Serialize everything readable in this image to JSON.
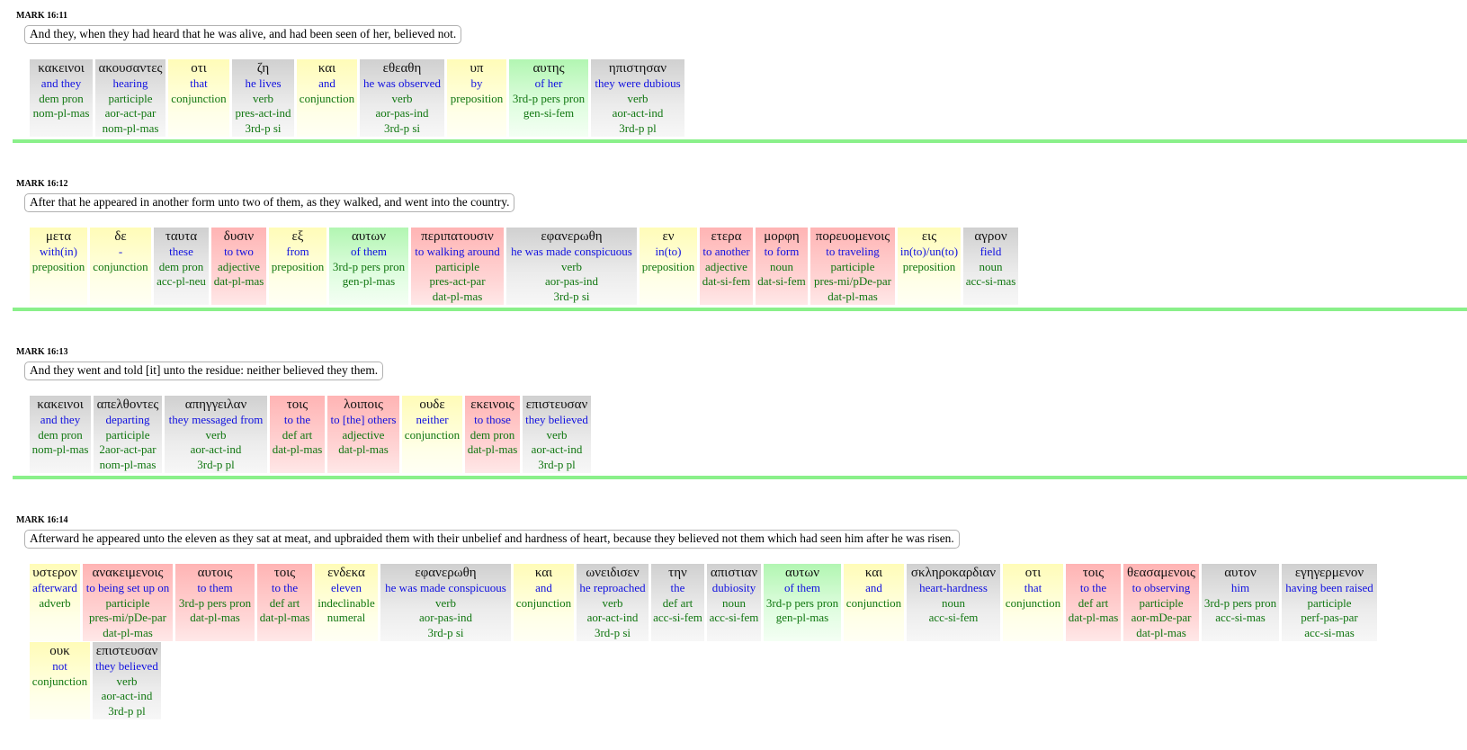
{
  "verses": [
    {
      "ref": "MARK 16:11",
      "translation": "And they, when they had heard that he was alive, and had been seen of her, believed not.",
      "words": [
        {
          "greek": "κακεινοι",
          "english": "and they",
          "pos": "dem pron",
          "morph": "nom-pl-mas",
          "morph2": "",
          "color": "gray",
          "w": 70
        },
        {
          "greek": "ακουσαντες",
          "english": "hearing",
          "pos": "participle",
          "morph": "aor-act-par",
          "morph2": "nom-pl-mas",
          "color": "gray",
          "w": 78
        },
        {
          "greek": "οτι",
          "english": "that",
          "pos": "conjunction",
          "morph": "",
          "morph2": "",
          "color": "yellow",
          "w": 68
        },
        {
          "greek": "ζη",
          "english": "he lives",
          "pos": "verb",
          "morph": "pres-act-ind",
          "morph2": "3rd-p si",
          "color": "gray",
          "w": 69
        },
        {
          "greek": "και",
          "english": "and",
          "pos": "conjunction",
          "morph": "",
          "morph2": "",
          "color": "yellow",
          "w": 67
        },
        {
          "greek": "εθεαθη",
          "english": "he was observed",
          "pos": "verb",
          "morph": "aor-pas-ind",
          "morph2": "3rd-p si",
          "color": "gray",
          "w": 94
        },
        {
          "greek": "υπ",
          "english": "by",
          "pos": "preposition",
          "morph": "",
          "morph2": "",
          "color": "yellow",
          "w": 66
        },
        {
          "greek": "αυτης",
          "english": "of her",
          "pos": "3rd-p pers pron",
          "morph": "gen-si-fem",
          "morph2": "",
          "color": "green",
          "w": 88
        },
        {
          "greek": "ηπιστησαν",
          "english": "they were dubious",
          "pos": "verb",
          "morph": "aor-act-ind",
          "morph2": "3rd-p pl",
          "color": "gray",
          "w": 104
        }
      ]
    },
    {
      "ref": "MARK 16:12",
      "translation": "After that he appeared in another form unto two of them, as they walked, and went into the country.",
      "words": [
        {
          "greek": "μετα",
          "english": "with(in)",
          "pos": "preposition",
          "morph": "",
          "morph2": "",
          "color": "yellow",
          "w": 64
        },
        {
          "greek": "δε",
          "english": "-",
          "pos": "conjunction",
          "morph": "",
          "morph2": "",
          "color": "yellow",
          "w": 68
        },
        {
          "greek": "ταυτα",
          "english": "these",
          "pos": "dem pron",
          "morph": "acc-pl-neu",
          "morph2": "",
          "color": "gray",
          "w": 61
        },
        {
          "greek": "δυσιν",
          "english": "to two",
          "pos": "adjective",
          "morph": "dat-pl-mas",
          "morph2": "",
          "color": "red",
          "w": 61
        },
        {
          "greek": "εξ",
          "english": "from",
          "pos": "preposition",
          "morph": "",
          "morph2": "",
          "color": "yellow",
          "w": 64
        },
        {
          "greek": "αυτων",
          "english": "of them",
          "pos": "3rd-p pers pron",
          "morph": "gen-pl-mas",
          "morph2": "",
          "color": "green",
          "w": 88
        },
        {
          "greek": "περιπατουσιν",
          "english": "to walking around",
          "pos": "participle",
          "morph": "pres-act-par",
          "morph2": "dat-pl-mas",
          "color": "red",
          "w": 103
        },
        {
          "greek": "εφανερωθη",
          "english": "he was made conspicuous",
          "pos": "verb",
          "morph": "aor-pas-ind",
          "morph2": "3rd-p si",
          "color": "gray",
          "w": 145
        },
        {
          "greek": "εν",
          "english": "in(to)",
          "pos": "preposition",
          "morph": "",
          "morph2": "",
          "color": "yellow",
          "w": 64
        },
        {
          "greek": "ετερα",
          "english": "to another",
          "pos": "adjective",
          "morph": "dat-si-fem",
          "morph2": "",
          "color": "red",
          "w": 59
        },
        {
          "greek": "μορφη",
          "english": "to form",
          "pos": "noun",
          "morph": "dat-si-fem",
          "morph2": "",
          "color": "red",
          "w": 58
        },
        {
          "greek": "πορευομενοις",
          "english": "to traveling",
          "pos": "participle",
          "morph": "pres-mi/pDe-par",
          "morph2": "dat-pl-mas",
          "color": "red",
          "w": 94
        },
        {
          "greek": "εις",
          "english": "in(to)/un(to)",
          "pos": "preposition",
          "morph": "",
          "morph2": "",
          "color": "yellow",
          "w": 70
        },
        {
          "greek": "αγρον",
          "english": "field",
          "pos": "noun",
          "morph": "acc-si-mas",
          "morph2": "",
          "color": "gray",
          "w": 61
        }
      ]
    },
    {
      "ref": "MARK 16:13",
      "translation": "And they went and told [it] unto the residue: neither believed they them.",
      "words": [
        {
          "greek": "κακεινοι",
          "english": "and they",
          "pos": "dem pron",
          "morph": "nom-pl-mas",
          "morph2": "",
          "color": "gray",
          "w": 68
        },
        {
          "greek": "απελθοντες",
          "english": "departing",
          "pos": "participle",
          "morph": "2aor-act-par",
          "morph2": "nom-pl-mas",
          "color": "gray",
          "w": 76
        },
        {
          "greek": "απηγγειλαν",
          "english": "they messaged from",
          "pos": "verb",
          "morph": "aor-act-ind",
          "morph2": "3rd-p pl",
          "color": "gray",
          "w": 114
        },
        {
          "greek": "τοις",
          "english": "to the",
          "pos": "def art",
          "morph": "dat-pl-mas",
          "morph2": "",
          "color": "red",
          "w": 61
        },
        {
          "greek": "λοιποις",
          "english": "to [the] others",
          "pos": "adjective",
          "morph": "dat-pl-mas",
          "morph2": "",
          "color": "red",
          "w": 80
        },
        {
          "greek": "ουδε",
          "english": "neither",
          "pos": "conjunction",
          "morph": "",
          "morph2": "",
          "color": "yellow",
          "w": 67
        },
        {
          "greek": "εκεινοις",
          "english": "to those",
          "pos": "dem pron",
          "morph": "dat-pl-mas",
          "morph2": "",
          "color": "red",
          "w": 61
        },
        {
          "greek": "επιστευσαν",
          "english": "they believed",
          "pos": "verb",
          "morph": "aor-act-ind",
          "morph2": "3rd-p pl",
          "color": "gray",
          "w": 76
        }
      ]
    },
    {
      "ref": "MARK 16:14",
      "translation": "Afterward he appeared unto the eleven as they sat at meat, and upbraided them with their unbelief and hardness of heart, because they believed not them which had seen him after he was risen.",
      "words": [
        {
          "greek": "υστερον",
          "english": "afterward",
          "pos": "adverb",
          "morph": "",
          "morph2": "",
          "color": "yellow",
          "w": 56
        },
        {
          "greek": "ανακειμενοις",
          "english": "to being set up on",
          "pos": "participle",
          "morph": "pres-mi/pDe-par",
          "morph2": "dat-pl-mas",
          "color": "red",
          "w": 100
        },
        {
          "greek": "αυτοις",
          "english": "to them",
          "pos": "3rd-p pers pron",
          "morph": "dat-pl-mas",
          "morph2": "",
          "color": "red",
          "w": 88
        },
        {
          "greek": "τοις",
          "english": "to the",
          "pos": "def art",
          "morph": "dat-pl-mas",
          "morph2": "",
          "color": "red",
          "w": 61
        },
        {
          "greek": "ενδεκα",
          "english": "eleven",
          "pos": "indeclinable",
          "morph": "numeral",
          "morph2": "",
          "color": "yellow",
          "w": 70
        },
        {
          "greek": "εφανερωθη",
          "english": "he was made conspicuous",
          "pos": "verb",
          "morph": "aor-pas-ind",
          "morph2": "3rd-p si",
          "color": "gray",
          "w": 145
        },
        {
          "greek": "και",
          "english": "and",
          "pos": "conjunction",
          "morph": "",
          "morph2": "",
          "color": "yellow",
          "w": 67
        },
        {
          "greek": "ωνειδισεν",
          "english": "he reproached",
          "pos": "verb",
          "morph": "aor-act-ind",
          "morph2": "3rd-p si",
          "color": "gray",
          "w": 80
        },
        {
          "greek": "την",
          "english": "the",
          "pos": "def art",
          "morph": "acc-si-fem",
          "morph2": "",
          "color": "gray",
          "w": 59
        },
        {
          "greek": "απιστιαν",
          "english": "dubiosity",
          "pos": "noun",
          "morph": "acc-si-fem",
          "morph2": "",
          "color": "gray",
          "w": 60
        },
        {
          "greek": "αυτων",
          "english": "of them",
          "pos": "3rd-p pers pron",
          "morph": "gen-pl-mas",
          "morph2": "",
          "color": "green",
          "w": 86
        },
        {
          "greek": "και",
          "english": "and",
          "pos": "conjunction",
          "morph": "",
          "morph2": "",
          "color": "yellow",
          "w": 67
        },
        {
          "greek": "σκληροκαρδιαν",
          "english": "heart-hardness",
          "pos": "noun",
          "morph": "acc-si-fem",
          "morph2": "",
          "color": "gray",
          "w": 104
        },
        {
          "greek": "οτι",
          "english": "that",
          "pos": "conjunction",
          "morph": "",
          "morph2": "",
          "color": "yellow",
          "w": 67
        },
        {
          "greek": "τοις",
          "english": "to the",
          "pos": "def art",
          "morph": "dat-pl-mas",
          "morph2": "",
          "color": "red",
          "w": 61
        },
        {
          "greek": "θεασαμενοις",
          "english": "to observing",
          "pos": "participle",
          "morph": "aor-mDe-par",
          "morph2": "dat-pl-mas",
          "color": "red",
          "w": 84
        },
        {
          "greek": "αυτον",
          "english": "him",
          "pos": "3rd-p pers pron",
          "morph": "acc-si-mas",
          "morph2": "",
          "color": "gray",
          "w": 86
        },
        {
          "greek": "εγηγερμενον",
          "english": "having been raised",
          "pos": "participle",
          "morph": "perf-pas-par",
          "morph2": "acc-si-mas",
          "color": "gray",
          "w": 106
        },
        {
          "greek": "ουκ",
          "english": "not",
          "pos": "conjunction",
          "morph": "",
          "morph2": "",
          "color": "yellow",
          "w": 67
        },
        {
          "greek": "επιστευσαν",
          "english": "they believed",
          "pos": "verb",
          "morph": "aor-act-ind",
          "morph2": "3rd-p pl",
          "color": "gray",
          "w": 76
        }
      ]
    }
  ]
}
